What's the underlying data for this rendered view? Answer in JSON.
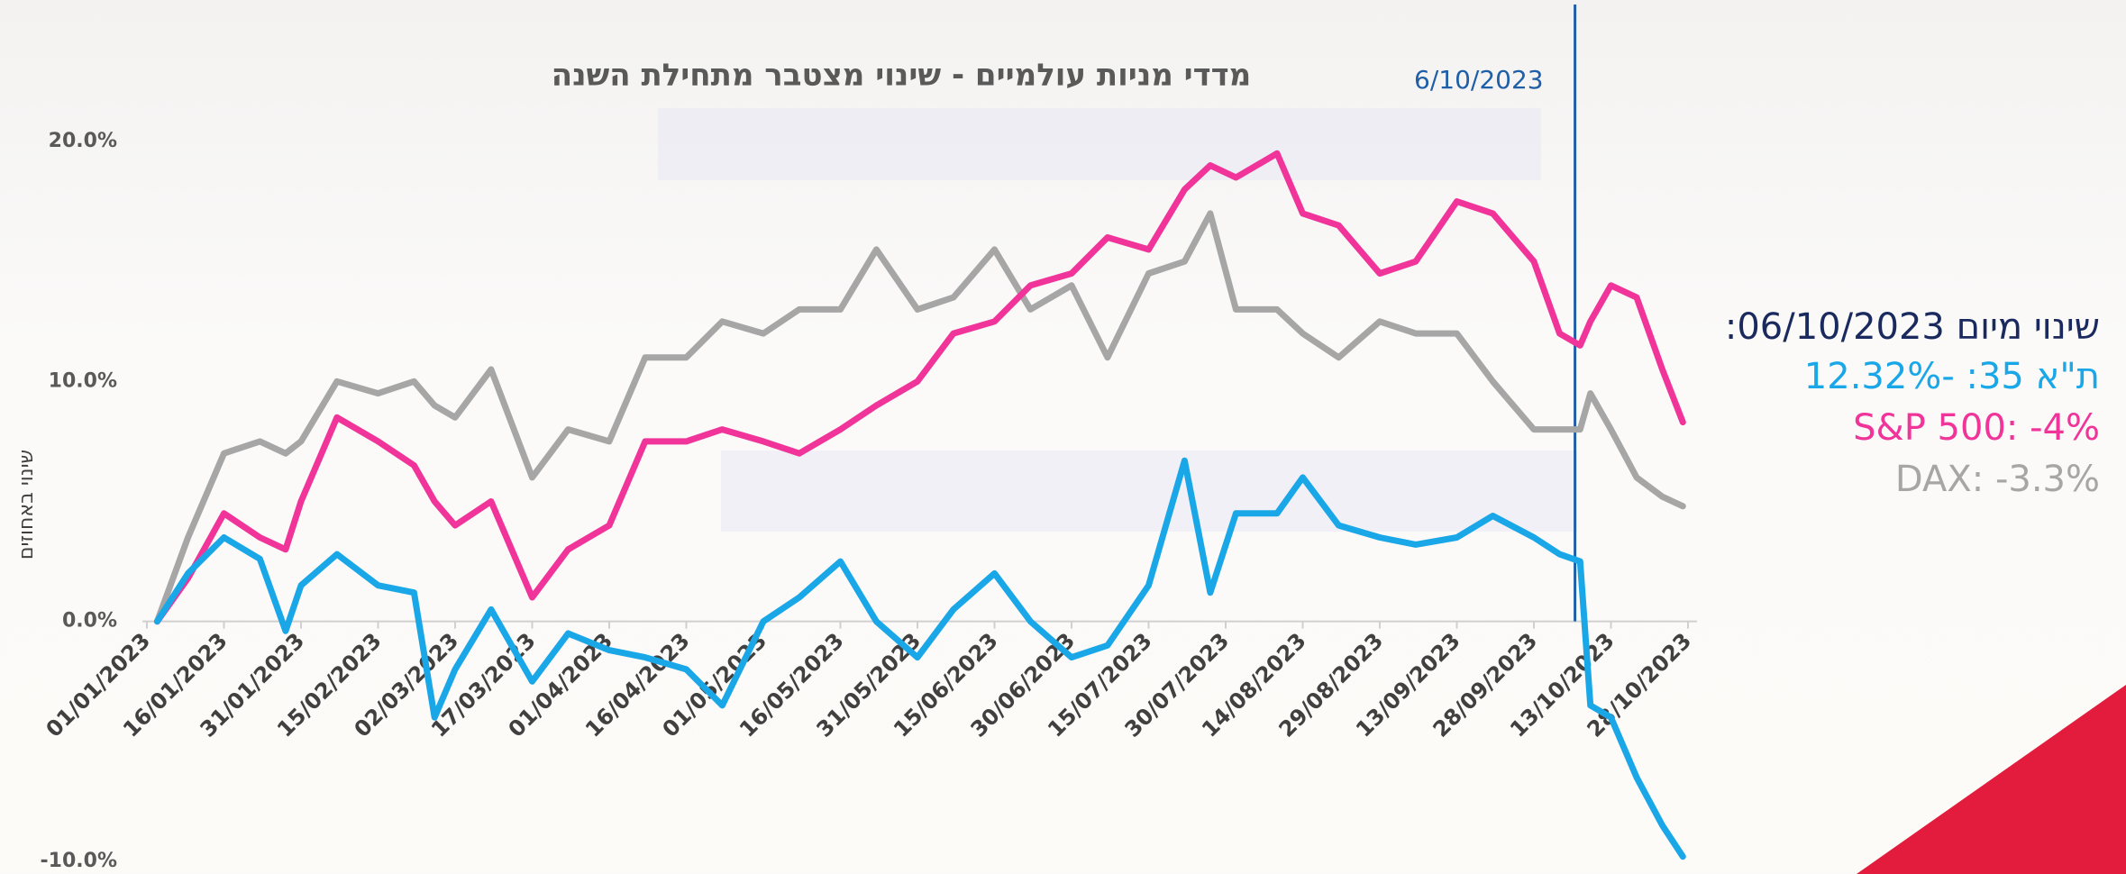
{
  "chart_data": {
    "type": "line",
    "title": "מדדי מניות עולמיים - שינוי מצטבר מתחילת השנה",
    "y_label": "שינוי באחוזים",
    "x": [
      "03/01/2023",
      "09/01/2023",
      "16/01/2023",
      "23/01/2023",
      "28/01/2023",
      "31/01/2023",
      "07/02/2023",
      "15/02/2023",
      "22/02/2023",
      "26/02/2023",
      "02/03/2023",
      "09/03/2023",
      "17/03/2023",
      "24/03/2023",
      "01/04/2023",
      "08/04/2023",
      "16/04/2023",
      "23/04/2023",
      "01/05/2023",
      "08/05/2023",
      "16/05/2023",
      "23/05/2023",
      "31/05/2023",
      "07/06/2023",
      "15/06/2023",
      "22/06/2023",
      "30/06/2023",
      "07/07/2023",
      "15/07/2023",
      "22/07/2023",
      "27/07/2023",
      "01/08/2023",
      "09/08/2023",
      "14/08/2023",
      "21/08/2023",
      "29/08/2023",
      "05/09/2023",
      "13/09/2023",
      "20/09/2023",
      "28/09/2023",
      "03/10/2023",
      "07/10/2023",
      "09/10/2023",
      "13/10/2023",
      "18/10/2023",
      "23/10/2023",
      "27/10/2023"
    ],
    "series": [
      {
        "color": "#1aa7e8",
        "values": [
          0,
          2,
          3.5,
          2.6,
          -0.4,
          1.5,
          2.8,
          1.5,
          1.2,
          -4,
          -2,
          0.5,
          -2.5,
          -0.5,
          -1.2,
          -1.5,
          -2,
          -3.5,
          0,
          1,
          2.5,
          0,
          -1.5,
          0.5,
          2,
          0,
          -1.5,
          -1,
          1.5,
          6.7,
          1.2,
          4.5,
          4.5,
          6,
          4,
          3.5,
          3.2,
          3.5,
          4.4,
          3.5,
          2.8,
          2.5,
          -3.5,
          -4,
          -6.5,
          -8.5,
          -9.8
        ]
      },
      {
        "color": "#f0349a",
        "values": [
          0,
          1.8,
          4.5,
          3.5,
          3,
          5,
          8.5,
          7.5,
          6.5,
          5,
          4,
          5,
          1,
          3,
          4,
          7.5,
          7.5,
          8,
          7.5,
          7,
          8,
          9,
          10,
          12,
          12.5,
          14,
          14.5,
          16,
          15.5,
          18,
          19,
          18.5,
          19.5,
          17,
          16.5,
          14.5,
          15,
          17.5,
          17,
          15,
          12,
          11.5,
          12.5,
          14,
          13.5,
          10.5,
          8.3
        ]
      },
      {
        "color": "#a6a6a6",
        "values": [
          0,
          3.5,
          7,
          7.5,
          7,
          7.5,
          10,
          9.5,
          10,
          9,
          8.5,
          10.5,
          6,
          8,
          7.5,
          11,
          11,
          12.5,
          12,
          13,
          13,
          15.5,
          13,
          13.5,
          15.5,
          13,
          14,
          11,
          14.5,
          15,
          17,
          13,
          13,
          12,
          11,
          12.5,
          12,
          12,
          10,
          8,
          8,
          8,
          9.5,
          8,
          6,
          5.2,
          4.8
        ]
      }
    ],
    "xlim": [
      "01/01/2023",
      "28/10/2023"
    ],
    "xticks": [
      "01/01/2023",
      "16/01/2023",
      "31/01/2023",
      "15/02/2023",
      "02/03/2023",
      "17/03/2023",
      "01/04/2023",
      "16/04/2023",
      "01/05/2023",
      "16/05/2023",
      "31/05/2023",
      "15/06/2023",
      "30/06/2023",
      "15/07/2023",
      "30/07/2023",
      "14/08/2023",
      "29/08/2023",
      "13/09/2023",
      "28/09/2023",
      "13/10/2023",
      "28/10/2023"
    ],
    "ylim": [
      -10,
      20
    ],
    "yticks": [
      {
        "value": -10,
        "label": "-10.0%"
      },
      {
        "value": 0,
        "label": "0.0%"
      },
      {
        "value": 10,
        "label": "10.0%"
      },
      {
        "value": 20,
        "label": "20.0%"
      }
    ],
    "annotation": {
      "text": "6/10/2023",
      "x": "06/10/2023",
      "color": "#1f5fa8"
    },
    "change_note": {
      "title": "שינוי מיום 06/10/2023:",
      "lines": [
        "ת\"א 35: -12.32%",
        "S&P 500: -4%",
        "DAX: -3.3%"
      ]
    }
  }
}
